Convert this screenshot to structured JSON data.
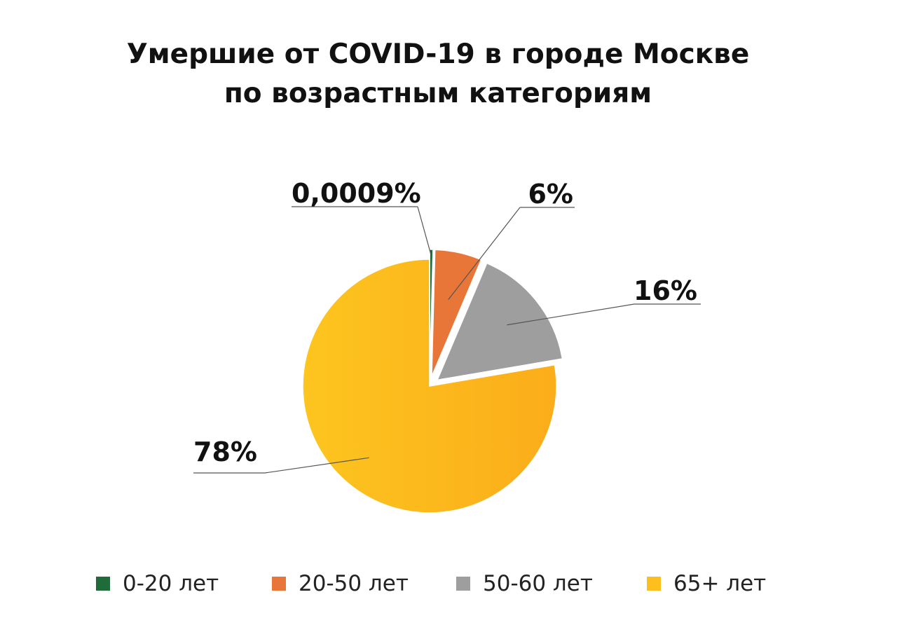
{
  "chart_data": {
    "type": "pie",
    "title_lines": [
      "Умершие от COVID-19 в городе Москве",
      "по возрастным категориям"
    ],
    "slices": [
      {
        "category": "0-20 лет",
        "value": 0.0009,
        "label": "0,0009%",
        "color": "#1f6b3a"
      },
      {
        "category": "20-50 лет",
        "value": 6,
        "label": "6%",
        "color": "#e87638"
      },
      {
        "category": "50-60 лет",
        "value": 16,
        "label": "16%",
        "color": "#9e9e9e"
      },
      {
        "category": "65+ лет",
        "value": 78,
        "label": "78%",
        "color": "#fdbf1e"
      }
    ],
    "exploded": [
      "0-20 лет",
      "20-50 лет",
      "50-60 лет"
    ],
    "legend_position": "bottom"
  }
}
